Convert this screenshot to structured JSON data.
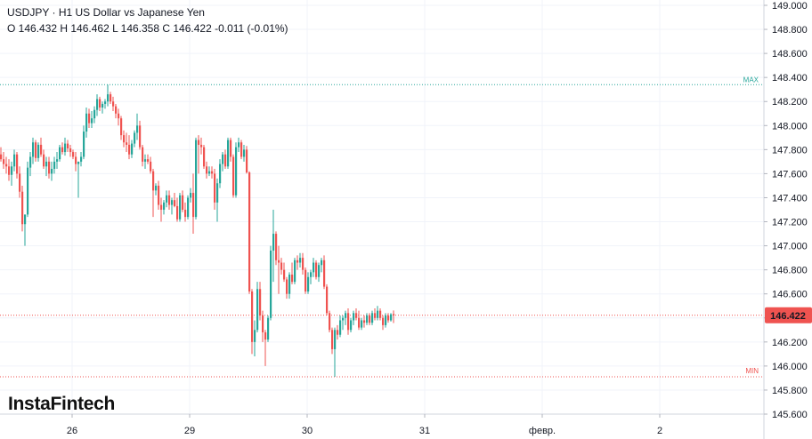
{
  "header": {
    "symbol": "USDJPY",
    "separator": "·",
    "timeframe": "H1",
    "instrument": "US Dollar vs Japanese Yen",
    "ohlc": "O 146.432 H 146.462 L 146.358 C 146.422  -0.011 (-0.01%)"
  },
  "brand": {
    "name": "InstaFintech"
  },
  "colors": {
    "up": "#26a69a",
    "down": "#ef5350",
    "grid": "#f0f3fa",
    "max": "#26a69a",
    "min": "#ef5350",
    "price": "#ef5350"
  },
  "chart_data": {
    "type": "candlestick",
    "title": "USDJPY · H1 US Dollar vs Japanese Yen",
    "ylim": [
      145.6,
      149.0
    ],
    "yticks": [
      "149.000",
      "148.800",
      "148.600",
      "148.400",
      "148.200",
      "148.000",
      "147.800",
      "147.600",
      "147.400",
      "147.200",
      "147.000",
      "146.800",
      "146.600",
      "146.400",
      "146.200",
      "146.000",
      "145.800",
      "145.600"
    ],
    "xticks": [
      {
        "label": "26",
        "index": 27
      },
      {
        "label": "29",
        "index": 71
      },
      {
        "label": "30",
        "index": 115
      },
      {
        "label": "31",
        "index": 159
      },
      {
        "label": "февр.",
        "index": 203
      },
      {
        "label": "2",
        "index": 247
      }
    ],
    "levels": [
      {
        "name": "MAX",
        "value": 148.34
      },
      {
        "name": "MIN",
        "value": 145.91
      }
    ],
    "last_price": 146.422,
    "last_price_label": "146.422",
    "candles": [
      [
        147.76,
        147.82,
        147.7,
        147.72
      ],
      [
        147.72,
        147.78,
        147.64,
        147.68
      ],
      [
        147.68,
        147.74,
        147.6,
        147.66
      ],
      [
        147.66,
        147.72,
        147.54,
        147.59
      ],
      [
        147.59,
        147.7,
        147.5,
        147.66
      ],
      [
        147.66,
        147.8,
        147.62,
        147.76
      ],
      [
        147.76,
        147.78,
        147.56,
        147.6
      ],
      [
        147.6,
        147.66,
        147.4,
        147.45
      ],
      [
        147.45,
        147.5,
        147.12,
        147.18
      ],
      [
        147.18,
        147.26,
        147.0,
        147.26
      ],
      [
        147.26,
        147.7,
        147.24,
        147.65
      ],
      [
        147.65,
        147.78,
        147.58,
        147.74
      ],
      [
        147.74,
        147.9,
        147.68,
        147.86
      ],
      [
        147.86,
        147.88,
        147.7,
        147.73
      ],
      [
        147.73,
        147.86,
        147.7,
        147.84
      ],
      [
        147.84,
        147.9,
        147.74,
        147.76
      ],
      [
        147.76,
        147.8,
        147.64,
        147.66
      ],
      [
        147.66,
        147.74,
        147.58,
        147.7
      ],
      [
        147.7,
        147.74,
        147.56,
        147.6
      ],
      [
        147.6,
        147.7,
        147.54,
        147.64
      ],
      [
        147.64,
        147.74,
        147.6,
        147.7
      ],
      [
        147.7,
        147.78,
        147.64,
        147.72
      ],
      [
        147.72,
        147.84,
        147.7,
        147.82
      ],
      [
        147.82,
        147.86,
        147.76,
        147.78
      ],
      [
        147.78,
        147.9,
        147.75,
        147.85
      ],
      [
        147.85,
        147.88,
        147.78,
        147.81
      ],
      [
        147.81,
        147.84,
        147.74,
        147.78
      ],
      [
        147.78,
        147.8,
        147.72,
        147.74
      ],
      [
        147.74,
        147.78,
        147.62,
        147.68
      ],
      [
        147.68,
        147.7,
        147.4,
        147.7
      ],
      [
        147.7,
        147.78,
        147.66,
        147.74
      ],
      [
        147.74,
        148.0,
        147.72,
        147.95
      ],
      [
        147.95,
        148.15,
        147.9,
        148.1
      ],
      [
        148.1,
        148.14,
        147.98,
        148.02
      ],
      [
        148.02,
        148.12,
        147.98,
        148.06
      ],
      [
        148.06,
        148.16,
        148.02,
        148.13
      ],
      [
        148.13,
        148.26,
        148.08,
        148.22
      ],
      [
        148.22,
        148.24,
        148.12,
        148.15
      ],
      [
        148.15,
        148.2,
        148.1,
        148.18
      ],
      [
        148.18,
        148.22,
        148.14,
        148.2
      ],
      [
        148.2,
        148.34,
        148.16,
        148.26
      ],
      [
        148.26,
        148.28,
        148.18,
        148.2
      ],
      [
        148.2,
        148.24,
        148.12,
        148.16
      ],
      [
        148.16,
        148.18,
        148.06,
        148.1
      ],
      [
        148.1,
        148.14,
        148.0,
        148.06
      ],
      [
        148.06,
        148.08,
        147.88,
        147.92
      ],
      [
        147.92,
        147.96,
        147.82,
        147.86
      ],
      [
        147.86,
        147.94,
        147.78,
        147.84
      ],
      [
        147.84,
        147.92,
        147.72,
        147.76
      ],
      [
        147.76,
        147.88,
        147.73,
        147.85
      ],
      [
        147.85,
        147.96,
        147.82,
        147.94
      ],
      [
        147.94,
        148.1,
        147.88,
        148.0
      ],
      [
        148.0,
        148.04,
        147.8,
        147.82
      ],
      [
        147.82,
        147.84,
        147.66,
        147.7
      ],
      [
        147.7,
        147.76,
        147.64,
        147.72
      ],
      [
        147.72,
        147.76,
        147.68,
        147.7
      ],
      [
        147.7,
        147.74,
        147.6,
        147.62
      ],
      [
        147.62,
        147.64,
        147.24,
        147.46
      ],
      [
        147.46,
        147.52,
        147.42,
        147.5
      ],
      [
        147.5,
        147.54,
        147.3,
        147.34
      ],
      [
        147.34,
        147.4,
        147.2,
        147.3
      ],
      [
        147.3,
        147.38,
        147.26,
        147.36
      ],
      [
        147.36,
        147.46,
        147.32,
        147.42
      ],
      [
        147.42,
        147.46,
        147.3,
        147.34
      ],
      [
        147.34,
        147.4,
        147.26,
        147.38
      ],
      [
        147.38,
        147.44,
        147.32,
        147.33
      ],
      [
        147.33,
        147.4,
        147.2,
        147.22
      ],
      [
        147.22,
        147.44,
        147.2,
        147.42
      ],
      [
        147.42,
        147.46,
        147.28,
        147.3
      ],
      [
        147.3,
        147.36,
        147.2,
        147.24
      ],
      [
        147.24,
        147.42,
        147.22,
        147.4
      ],
      [
        147.4,
        147.48,
        147.36,
        147.44
      ],
      [
        147.44,
        147.6,
        147.1,
        147.24
      ],
      [
        147.24,
        147.9,
        147.22,
        147.88
      ],
      [
        147.88,
        147.92,
        147.6,
        147.84
      ],
      [
        147.84,
        147.9,
        147.76,
        147.82
      ],
      [
        147.82,
        147.84,
        147.64,
        147.66
      ],
      [
        147.66,
        147.7,
        147.56,
        147.6
      ],
      [
        147.6,
        147.66,
        147.58,
        147.62
      ],
      [
        147.62,
        147.66,
        147.56,
        147.6
      ],
      [
        147.6,
        147.64,
        147.3,
        147.36
      ],
      [
        147.36,
        147.56,
        147.2,
        147.52
      ],
      [
        147.52,
        147.72,
        147.48,
        147.68
      ],
      [
        147.68,
        147.78,
        147.62,
        147.76
      ],
      [
        147.76,
        147.8,
        147.64,
        147.66
      ],
      [
        147.66,
        147.9,
        147.64,
        147.88
      ],
      [
        147.88,
        147.9,
        147.7,
        147.74
      ],
      [
        147.74,
        147.76,
        147.4,
        147.42
      ],
      [
        147.42,
        147.86,
        147.4,
        147.82
      ],
      [
        147.82,
        147.9,
        147.78,
        147.86
      ],
      [
        147.86,
        147.88,
        147.72,
        147.74
      ],
      [
        147.74,
        147.84,
        147.7,
        147.8
      ],
      [
        147.8,
        147.83,
        147.6,
        147.61
      ],
      [
        147.61,
        147.62,
        146.6,
        146.62
      ],
      [
        146.62,
        146.64,
        146.1,
        146.2
      ],
      [
        146.2,
        146.38,
        146.08,
        146.3
      ],
      [
        146.3,
        146.7,
        146.28,
        146.64
      ],
      [
        146.64,
        146.7,
        146.38,
        146.42
      ],
      [
        146.42,
        146.46,
        146.2,
        146.28
      ],
      [
        146.28,
        146.3,
        146.0,
        146.22
      ],
      [
        146.22,
        146.42,
        146.2,
        146.4
      ],
      [
        146.4,
        147.0,
        146.38,
        146.96
      ],
      [
        146.96,
        147.3,
        146.7,
        147.1
      ],
      [
        147.1,
        147.12,
        146.84,
        146.88
      ],
      [
        146.88,
        147.0,
        146.6,
        146.86
      ],
      [
        146.86,
        146.9,
        146.76,
        146.8
      ],
      [
        146.8,
        146.86,
        146.7,
        146.72
      ],
      [
        146.72,
        146.74,
        146.56,
        146.6
      ],
      [
        146.6,
        146.78,
        146.56,
        146.76
      ],
      [
        146.76,
        146.86,
        146.68,
        146.7
      ],
      [
        146.7,
        146.9,
        146.68,
        146.88
      ],
      [
        146.88,
        146.92,
        146.8,
        146.86
      ],
      [
        146.86,
        146.94,
        146.82,
        146.9
      ],
      [
        146.9,
        146.94,
        146.76,
        146.8
      ],
      [
        146.8,
        146.82,
        146.6,
        146.62
      ],
      [
        146.62,
        146.78,
        146.6,
        146.74
      ],
      [
        146.74,
        146.8,
        146.68,
        146.78
      ],
      [
        146.78,
        146.9,
        146.74,
        146.86
      ],
      [
        146.86,
        146.88,
        146.72,
        146.74
      ],
      [
        146.74,
        146.86,
        146.7,
        146.84
      ],
      [
        146.84,
        146.9,
        146.78,
        146.88
      ],
      [
        146.88,
        146.92,
        146.64,
        146.66
      ],
      [
        146.66,
        146.68,
        146.42,
        146.44
      ],
      [
        146.44,
        146.46,
        146.28,
        146.3
      ],
      [
        146.3,
        146.32,
        146.1,
        146.14
      ],
      [
        146.14,
        146.32,
        145.91,
        146.3
      ],
      [
        146.3,
        146.34,
        146.22,
        146.26
      ],
      [
        146.26,
        146.42,
        146.24,
        146.38
      ],
      [
        146.38,
        146.42,
        146.3,
        146.4
      ],
      [
        146.4,
        146.46,
        146.34,
        146.44
      ],
      [
        146.44,
        146.48,
        146.26,
        146.3
      ],
      [
        146.3,
        146.4,
        146.28,
        146.38
      ],
      [
        146.38,
        146.46,
        146.34,
        146.44
      ],
      [
        146.44,
        146.48,
        146.38,
        146.4
      ],
      [
        146.4,
        146.46,
        146.3,
        146.32
      ],
      [
        146.32,
        146.4,
        146.3,
        146.38
      ],
      [
        146.38,
        146.42,
        146.32,
        146.36
      ],
      [
        146.36,
        146.44,
        146.34,
        146.42
      ],
      [
        146.42,
        146.44,
        146.34,
        146.36
      ],
      [
        146.36,
        146.46,
        146.34,
        146.44
      ],
      [
        146.44,
        146.48,
        146.38,
        146.4
      ],
      [
        146.4,
        146.5,
        146.38,
        146.46
      ],
      [
        146.46,
        146.48,
        146.38,
        146.4
      ],
      [
        146.4,
        146.42,
        146.3,
        146.34
      ],
      [
        146.34,
        146.44,
        146.32,
        146.42
      ],
      [
        146.42,
        146.44,
        146.36,
        146.38
      ],
      [
        146.38,
        146.44,
        146.37,
        146.43
      ],
      [
        146.432,
        146.462,
        146.358,
        146.422
      ]
    ]
  }
}
